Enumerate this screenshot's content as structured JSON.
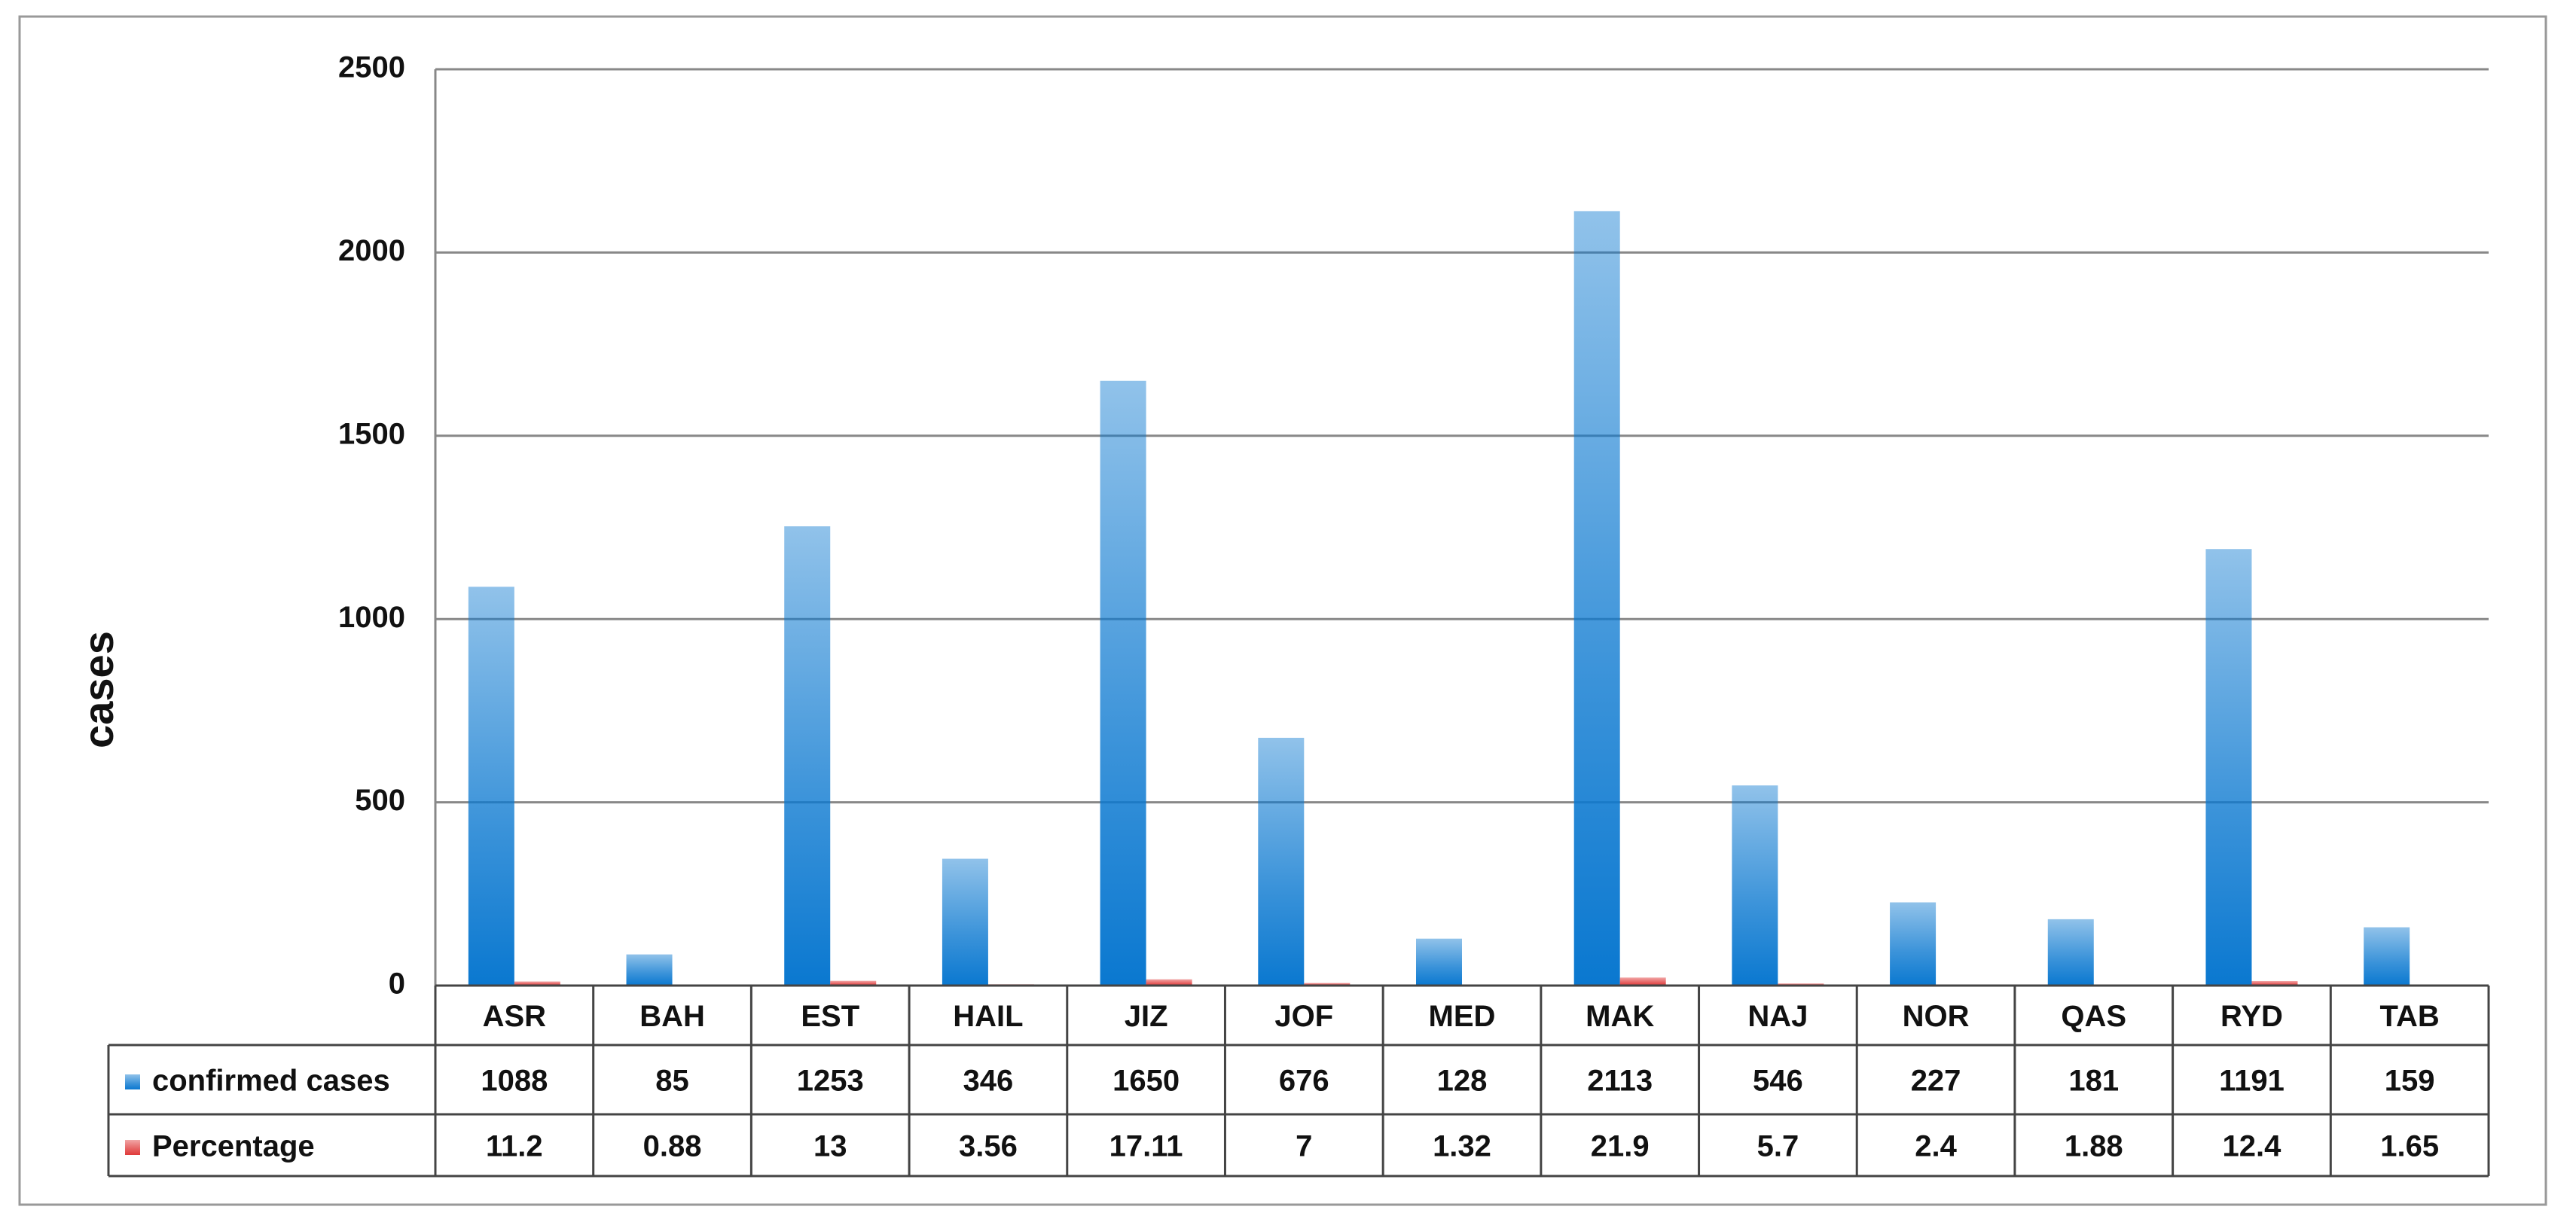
{
  "chart_data": {
    "type": "bar",
    "y_label": "cases",
    "categories": [
      "ASR",
      "BAH",
      "EST",
      "HAIL",
      "JIZ",
      "JOF",
      "MED",
      "MAK",
      "NAJ",
      "NOR",
      "QAS",
      "RYD",
      "TAB"
    ],
    "series": [
      {
        "name": "confirmed cases",
        "color": "#0a78d0",
        "values": [
          1088,
          85,
          1253,
          346,
          1650,
          676,
          128,
          2113,
          546,
          227,
          181,
          1191,
          159
        ]
      },
      {
        "name": "Percentage",
        "color": "#e03a3a",
        "values": [
          11.2,
          0.88,
          13,
          3.56,
          17.11,
          7,
          1.32,
          21.9,
          5.7,
          2.4,
          1.88,
          12.4,
          1.65
        ]
      }
    ],
    "ylim": [
      0,
      2500
    ],
    "yticks": [
      0,
      500,
      1000,
      1500,
      2000,
      2500
    ],
    "grid": true,
    "data_table": true
  }
}
